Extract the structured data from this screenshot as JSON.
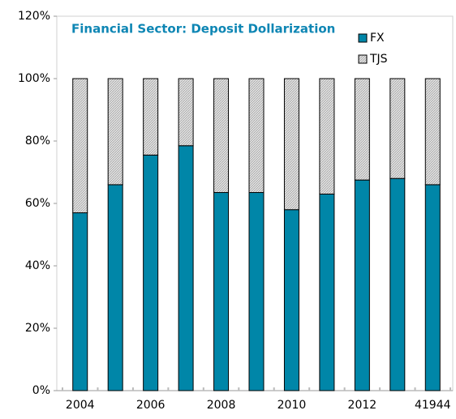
{
  "chart_data": {
    "type": "stacked_bar",
    "title": "Financial Sector: Deposit Dollarization",
    "categories": [
      "2004",
      null,
      "2006",
      null,
      "2008",
      null,
      "2010",
      null,
      "2012",
      null,
      "41944"
    ],
    "series": [
      {
        "name": "FX",
        "color": "#0086a8",
        "values": [
          57,
          66,
          75.5,
          78.5,
          63.5,
          63.5,
          58,
          63,
          67.5,
          68,
          66
        ]
      },
      {
        "name": "TJS",
        "color": "#d4d4d4",
        "values": [
          43,
          34,
          24.5,
          21.5,
          36.5,
          36.5,
          42,
          37,
          32.5,
          32,
          34
        ]
      }
    ],
    "ylim": [
      0,
      120
    ],
    "yticks": [
      {
        "value": 0,
        "label": "0%"
      },
      {
        "value": 20,
        "label": "20%"
      },
      {
        "value": 40,
        "label": "40%"
      },
      {
        "value": 60,
        "label": "60%"
      },
      {
        "value": 80,
        "label": "80%"
      },
      {
        "value": 100,
        "label": "100%"
      },
      {
        "value": 120,
        "label": "120%"
      }
    ],
    "legend": "upper right"
  }
}
